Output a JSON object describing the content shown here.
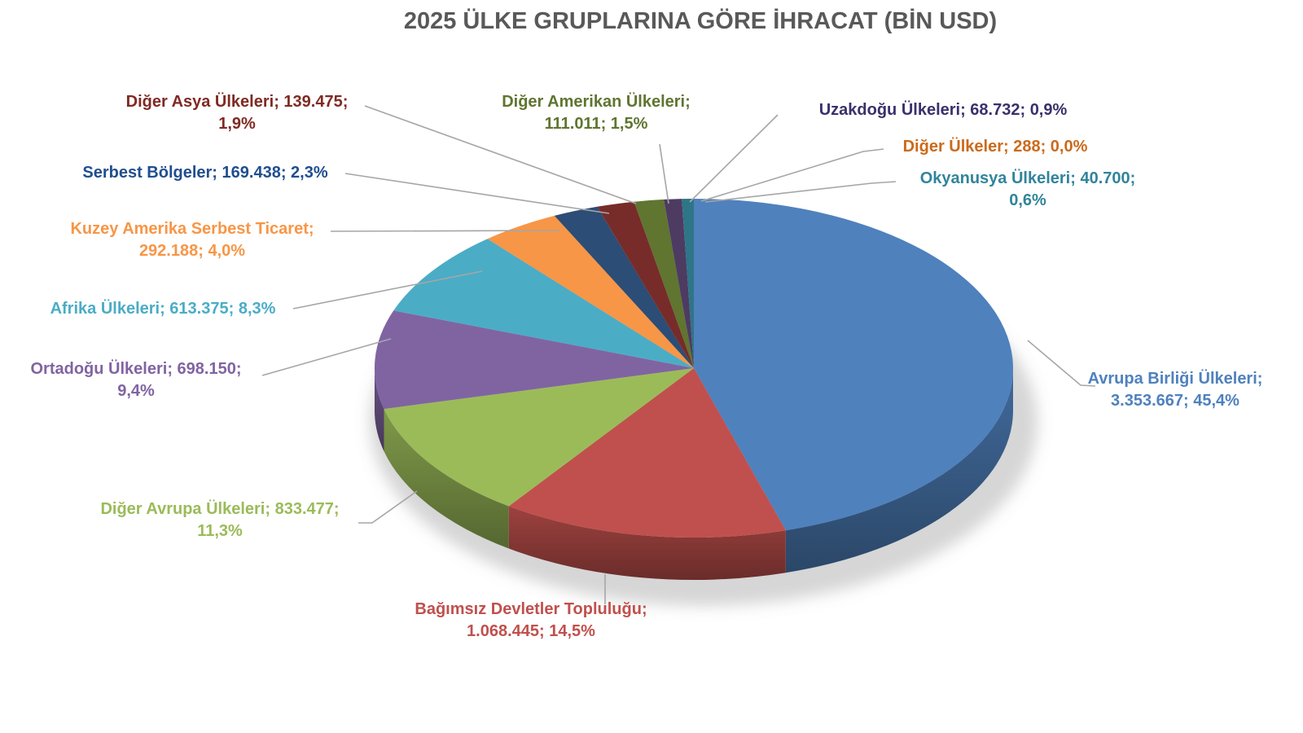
{
  "chart_data": {
    "type": "pie",
    "is_3d": true,
    "title": "2025 ÜLKE GRUPLARINA GÖRE İHRACAT (BİN USD)",
    "value_unit": "BİN USD",
    "legend_position": "none",
    "grid": false,
    "leader_line_color": "#A6A6A6",
    "title_color": "#595959",
    "slices": [
      {
        "id": "avrupa-birligi-ulkeleri",
        "name": "Avrupa Birliği Ülkeleri",
        "value": 3353667,
        "pct": 45.4,
        "color": "#4F81BD",
        "label_color": "#4F81BD",
        "label_line1": "Avrupa Birliği Ülkeleri;",
        "label_line2": "3.353.667; 45,4%"
      },
      {
        "id": "bagimsiz-devletler-toplulugu",
        "name": "Bağımsız Devletler Topluluğu",
        "value": 1068445,
        "pct": 14.5,
        "color": "#C0504D",
        "label_color": "#C0504D",
        "label_line1": "Bağımsız Devletler Topluluğu;",
        "label_line2": "1.068.445; 14,5%"
      },
      {
        "id": "diger-avrupa-ulkeleri",
        "name": "Diğer Avrupa Ülkeleri",
        "value": 833477,
        "pct": 11.3,
        "color": "#9BBB59",
        "label_color": "#9BBB59",
        "label_line1": "Diğer Avrupa Ülkeleri; 833.477;",
        "label_line2": "11,3%"
      },
      {
        "id": "ortadogu-ulkeleri",
        "name": "Ortadoğu Ülkeleri",
        "value": 698150,
        "pct": 9.4,
        "color": "#8064A2",
        "label_color": "#8064A2",
        "label_line1": "Ortadoğu Ülkeleri; 698.150;",
        "label_line2": "9,4%"
      },
      {
        "id": "afrika-ulkeleri",
        "name": "Afrika Ülkeleri",
        "value": 613375,
        "pct": 8.3,
        "color": "#4BACC6",
        "label_color": "#4BACC6",
        "label_line1": "Afrika Ülkeleri; 613.375; 8,3%",
        "label_line2": ""
      },
      {
        "id": "kuzey-amerika-serbest-ticaret",
        "name": "Kuzey Amerika Serbest Ticaret",
        "value": 292188,
        "pct": 4.0,
        "color": "#F79646",
        "label_color": "#F79646",
        "label_line1": "Kuzey Amerika Serbest Ticaret;",
        "label_line2": "292.188; 4,0%"
      },
      {
        "id": "serbest-bolgeler",
        "name": "Serbest Bölgeler",
        "value": 169438,
        "pct": 2.3,
        "color": "#2C4D75",
        "label_color": "#1F4E8F",
        "label_line1": "Serbest Bölgeler; 169.438; 2,3%",
        "label_line2": ""
      },
      {
        "id": "diger-asya-ulkeleri",
        "name": "Diğer Asya Ülkeleri",
        "value": 139475,
        "pct": 1.9,
        "color": "#772C2A",
        "label_color": "#7F2A23",
        "label_line1": "Diğer Asya Ülkeleri; 139.475;",
        "label_line2": "1,9%"
      },
      {
        "id": "diger-amerikan-ulkeleri",
        "name": "Diğer Amerikan Ülkeleri",
        "value": 111011,
        "pct": 1.5,
        "color": "#5F7530",
        "label_color": "#5F7530",
        "label_line1": "Diğer Amerikan Ülkeleri;",
        "label_line2": "111.011; 1,5%"
      },
      {
        "id": "uzakdogu-ulkeleri",
        "name": "Uzakdoğu Ülkeleri",
        "value": 68732,
        "pct": 0.9,
        "color": "#4D3B62",
        "label_color": "#39316B",
        "label_line1": "Uzakdoğu Ülkeleri; 68.732; 0,9%",
        "label_line2": ""
      },
      {
        "id": "diger-ulkeler",
        "name": "Diğer Ülkeler",
        "value": 288,
        "pct": 0.0,
        "color": "#B65708",
        "label_color": "#CB6A1A",
        "label_line1": "Diğer Ülkeler; 288; 0,0%",
        "label_line2": ""
      },
      {
        "id": "okyanusya-ulkeleri",
        "name": "Okyanusya Ülkeleri",
        "value": 40700,
        "pct": 0.6,
        "color": "#2E7588",
        "label_color": "#31849B",
        "label_line1": "Okyanusya Ülkeleri; 40.700;",
        "label_line2": "0,6%"
      }
    ]
  }
}
